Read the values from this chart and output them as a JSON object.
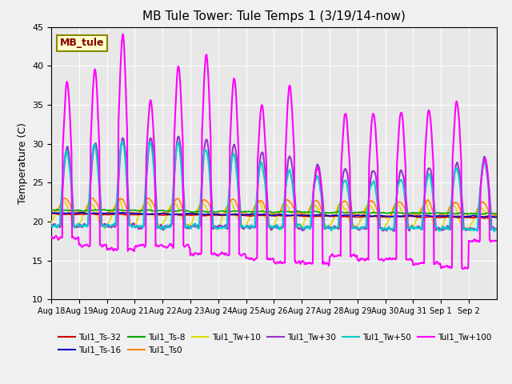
{
  "title": "MB Tule Tower: Tule Temps 1 (3/19/14-now)",
  "ylabel": "Temperature (C)",
  "ylim": [
    10,
    45
  ],
  "yticks": [
    10,
    15,
    20,
    25,
    30,
    35,
    40,
    45
  ],
  "xtick_labels": [
    "Aug 18",
    "Aug 19",
    "Aug 20",
    "Aug 21",
    "Aug 22",
    "Aug 23",
    "Aug 24",
    "Aug 25",
    "Aug 26",
    "Aug 27",
    "Aug 28",
    "Aug 29",
    "Aug 30",
    "Aug 31",
    "Sep 1",
    "Sep 2"
  ],
  "plot_bg_color": "#e8e8e8",
  "fig_bg_color": "#f0f0f0",
  "series": {
    "Tul1_Ts-32": {
      "color": "#cc0000",
      "lw": 1.2,
      "zorder": 5
    },
    "Tul1_Ts-16": {
      "color": "#0000cc",
      "lw": 1.2,
      "zorder": 5
    },
    "Tul1_Ts-8": {
      "color": "#00aa00",
      "lw": 1.2,
      "zorder": 5
    },
    "Tul1_Ts0": {
      "color": "#ff8800",
      "lw": 1.2,
      "zorder": 4
    },
    "Tul1_Tw+10": {
      "color": "#dddd00",
      "lw": 1.2,
      "zorder": 3
    },
    "Tul1_Tw+30": {
      "color": "#9933cc",
      "lw": 1.5,
      "zorder": 6
    },
    "Tul1_Tw+50": {
      "color": "#00cccc",
      "lw": 1.5,
      "zorder": 6
    },
    "Tul1_Tw+100": {
      "color": "#ff00ff",
      "lw": 1.5,
      "zorder": 7
    }
  },
  "station_label": "MB_tule",
  "station_label_color": "#880000",
  "station_box_facecolor": "#ffffcc",
  "station_box_edgecolor": "#888800"
}
